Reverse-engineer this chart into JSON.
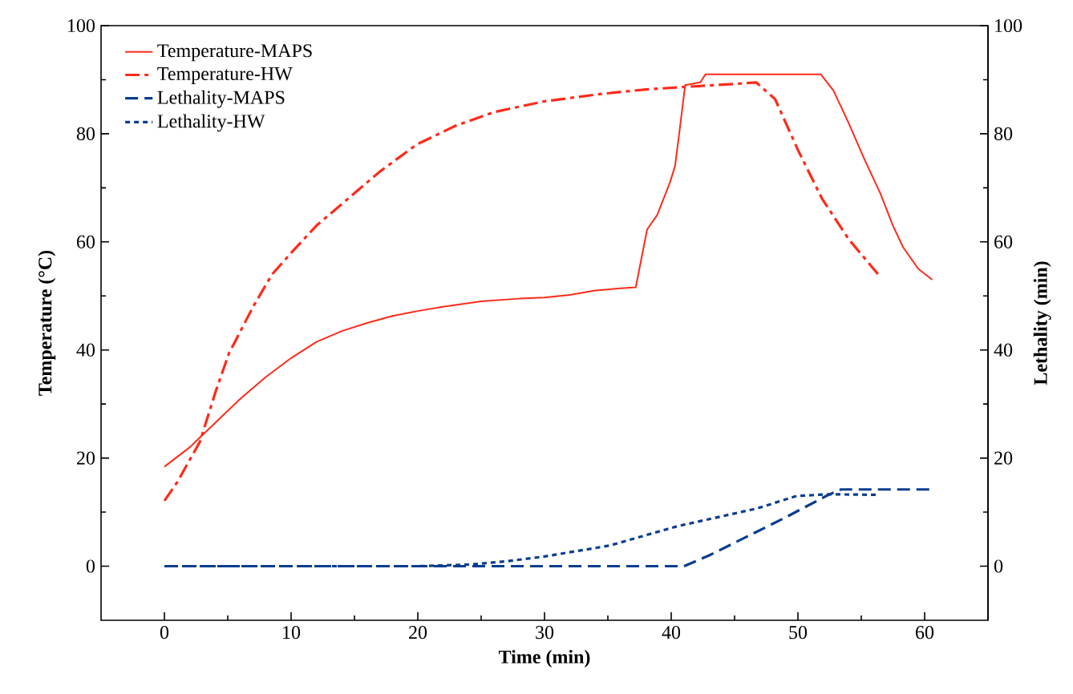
{
  "chart_data": {
    "type": "line",
    "xlabel": "Time (min)",
    "ylabel": "Temperature (°C)",
    "y2label": "Lethality (min)",
    "xlim": [
      -5,
      65
    ],
    "xticks": [
      0,
      10,
      20,
      30,
      40,
      50,
      60
    ],
    "ylim": [
      -10,
      100
    ],
    "yticks": [
      0,
      20,
      40,
      60,
      80,
      100
    ],
    "y2lim": [
      -10,
      100
    ],
    "y2ticks": [
      0,
      20,
      40,
      60,
      80,
      100
    ],
    "legend": "top left",
    "grid": false,
    "marker": "none",
    "series": [
      {
        "name": "Temperature-MAPS",
        "color": "#ff2a1a",
        "line_style": "solid",
        "x": [
          0,
          2,
          4,
          6,
          8,
          10,
          12,
          14,
          16,
          18,
          20,
          22,
          25,
          28,
          30,
          32,
          34,
          36,
          37.2,
          38.1,
          38.9,
          39.9,
          40.3,
          40.6,
          41.1,
          42.3,
          42.7,
          46,
          50,
          51.8,
          52.8,
          54,
          55.3,
          56.5,
          57.5,
          58.3,
          59.5,
          60.6
        ],
        "values": [
          18.4,
          22,
          26.5,
          31,
          35,
          38.5,
          41.5,
          43.5,
          45,
          46.3,
          47.2,
          48,
          49,
          49.5,
          49.7,
          50.2,
          51,
          51.4,
          51.6,
          62.3,
          65,
          71,
          74,
          79.5,
          89,
          89.5,
          91,
          91,
          91,
          91,
          88,
          82,
          75,
          69,
          63,
          59,
          55,
          53
        ]
      },
      {
        "name": "Temperature-HW",
        "color": "#ff2a1a",
        "line_style": "dashdot",
        "x": [
          0,
          1,
          2.8,
          4,
          5.1,
          7,
          8.5,
          10.1,
          12,
          15,
          17,
          19.9,
          23,
          26,
          30,
          34.6,
          38,
          42,
          45,
          46.7,
          48.2,
          50,
          51.9,
          54,
          56.4
        ],
        "values": [
          12.1,
          15.5,
          23,
          32,
          39.4,
          48,
          54,
          58.2,
          63,
          69,
          73,
          78,
          81.5,
          84,
          86,
          87.4,
          88.2,
          88.8,
          89.2,
          89.5,
          86.4,
          77,
          68,
          60.5,
          53.8
        ]
      },
      {
        "name": "Lethality-MAPS",
        "color": "#0a3d8f",
        "line_style": "dashed",
        "axis": "y2",
        "x": [
          0,
          10,
          20,
          30,
          41,
          43,
          46,
          49,
          52.4,
          53.4,
          56,
          60.6
        ],
        "values": [
          0,
          0,
          0,
          0,
          0,
          2,
          5.5,
          9,
          13.2,
          14.2,
          14.2,
          14.2
        ]
      },
      {
        "name": "Lethality-HW",
        "color": "#0a3d8f",
        "line_style": "dotted",
        "axis": "y2",
        "x": [
          0,
          10,
          20,
          24,
          27,
          30,
          35.1,
          40.5,
          46.8,
          49.9,
          52.4,
          56.4
        ],
        "values": [
          0,
          0,
          0,
          0.3,
          0.9,
          1.8,
          3.8,
          7.4,
          10.7,
          13,
          13.3,
          13.2
        ]
      }
    ]
  }
}
